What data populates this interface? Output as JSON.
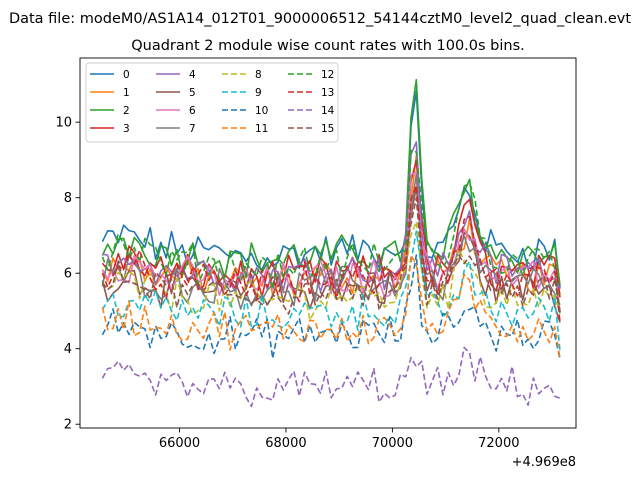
{
  "chart_data": {
    "type": "line",
    "suptitle": "Data file: modeM0/AS1A14_012T01_9000006512_54144cztM0_level2_quad_clean.evt",
    "title": "Quadrant 2 module wise count rates with 100.0s bins.",
    "xlabel": "",
    "ylabel": "",
    "x_offset_label": "+4.969e8",
    "xlim": [
      64130,
      73450
    ],
    "ylim": [
      1.9,
      11.7
    ],
    "x_ticks": [
      66000,
      68000,
      70000,
      72000
    ],
    "x_tick_labels": [
      "66000",
      "68000",
      "70000",
      "72000"
    ],
    "y_ticks": [
      2,
      4,
      6,
      8,
      10
    ],
    "y_tick_labels": [
      "2",
      "4",
      "6",
      "8",
      "10"
    ],
    "grid": false,
    "legend_position": "top-left",
    "x_start": 64550,
    "x_step": 100,
    "n_points": 87,
    "series": [
      {
        "name": "0",
        "color": "#1f77b4",
        "dash": "solid",
        "base": 6.6,
        "peak": 4.0,
        "peak2": 1.6
      },
      {
        "name": "1",
        "color": "#ff7f0e",
        "dash": "solid",
        "base": 5.9,
        "peak": 3.0,
        "peak2": 1.3
      },
      {
        "name": "2",
        "color": "#2ca02c",
        "dash": "solid",
        "base": 6.5,
        "peak": 4.6,
        "peak2": 1.8
      },
      {
        "name": "3",
        "color": "#d62728",
        "dash": "solid",
        "base": 6.0,
        "peak": 3.4,
        "peak2": 1.6
      },
      {
        "name": "4",
        "color": "#9467bd",
        "dash": "solid",
        "base": 6.1,
        "peak": 3.6,
        "peak2": 1.4
      },
      {
        "name": "5",
        "color": "#8c564b",
        "dash": "solid",
        "base": 5.6,
        "peak": 2.6,
        "peak2": 1.2
      },
      {
        "name": "6",
        "color": "#e377c2",
        "dash": "solid",
        "base": 5.9,
        "peak": 3.0,
        "peak2": 1.3
      },
      {
        "name": "7",
        "color": "#7f7f7f",
        "dash": "solid",
        "base": 5.7,
        "peak": 2.8,
        "peak2": 1.2
      },
      {
        "name": "8",
        "color": "#bcbd22",
        "dash": "dashed",
        "base": 5.4,
        "peak": 2.2,
        "peak2": 1.0
      },
      {
        "name": "9",
        "color": "#17becf",
        "dash": "dashed",
        "base": 5.0,
        "peak": 2.0,
        "peak2": 0.9
      },
      {
        "name": "10",
        "color": "#1f77b4",
        "dash": "dashed",
        "base": 4.4,
        "peak": 1.7,
        "peak2": 0.8
      },
      {
        "name": "11",
        "color": "#ff7f0e",
        "dash": "dashed",
        "base": 4.6,
        "peak": 1.8,
        "peak2": 0.9
      },
      {
        "name": "12",
        "color": "#2ca02c",
        "dash": "dashed",
        "base": 6.3,
        "peak": 3.4,
        "peak2": 2.0
      },
      {
        "name": "13",
        "color": "#d62728",
        "dash": "dashed",
        "base": 5.8,
        "peak": 2.8,
        "peak2": 1.5
      },
      {
        "name": "14",
        "color": "#9467bd",
        "dash": "dashed",
        "base": 3.0,
        "peak": 0.7,
        "peak2": 0.6
      },
      {
        "name": "15",
        "color": "#8c564b",
        "dash": "dashed",
        "base": 5.5,
        "peak": 2.3,
        "peak2": 1.1
      }
    ]
  }
}
